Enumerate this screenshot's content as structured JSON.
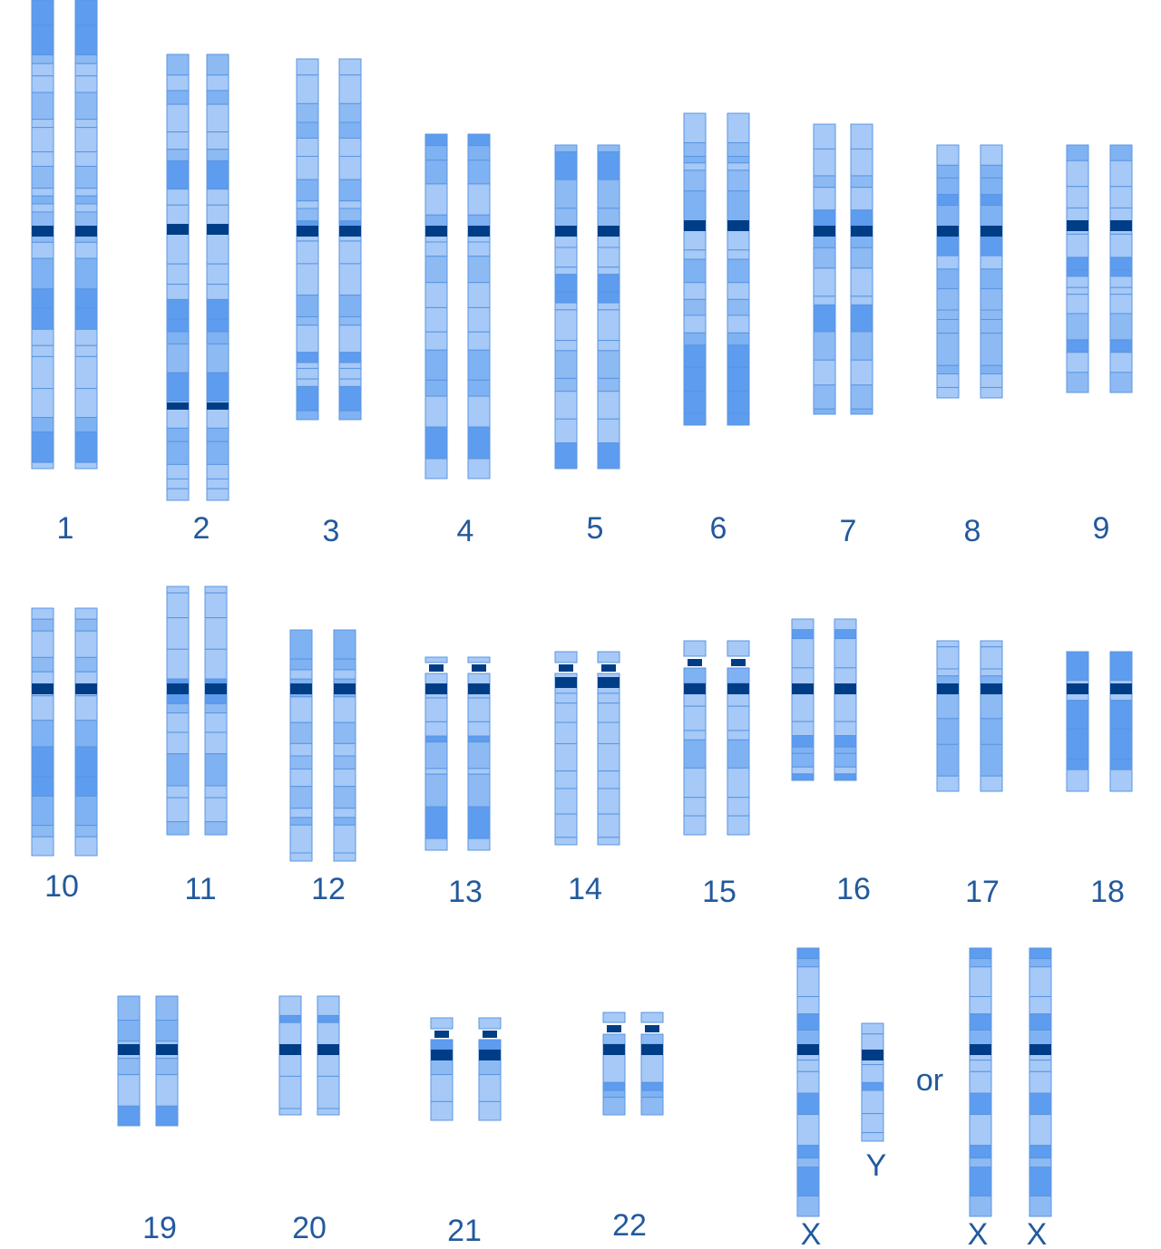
{
  "chromosome_labels": [
    "1",
    "2",
    "3",
    "4",
    "5",
    "6",
    "7",
    "8",
    "9",
    "10",
    "11",
    "12",
    "13",
    "14",
    "15",
    "16",
    "17",
    "18",
    "19",
    "20",
    "21",
    "22"
  ],
  "sex_chromosomes": {
    "male": [
      "X",
      "Y"
    ],
    "connector": "or",
    "female": [
      "X",
      "X"
    ]
  }
}
